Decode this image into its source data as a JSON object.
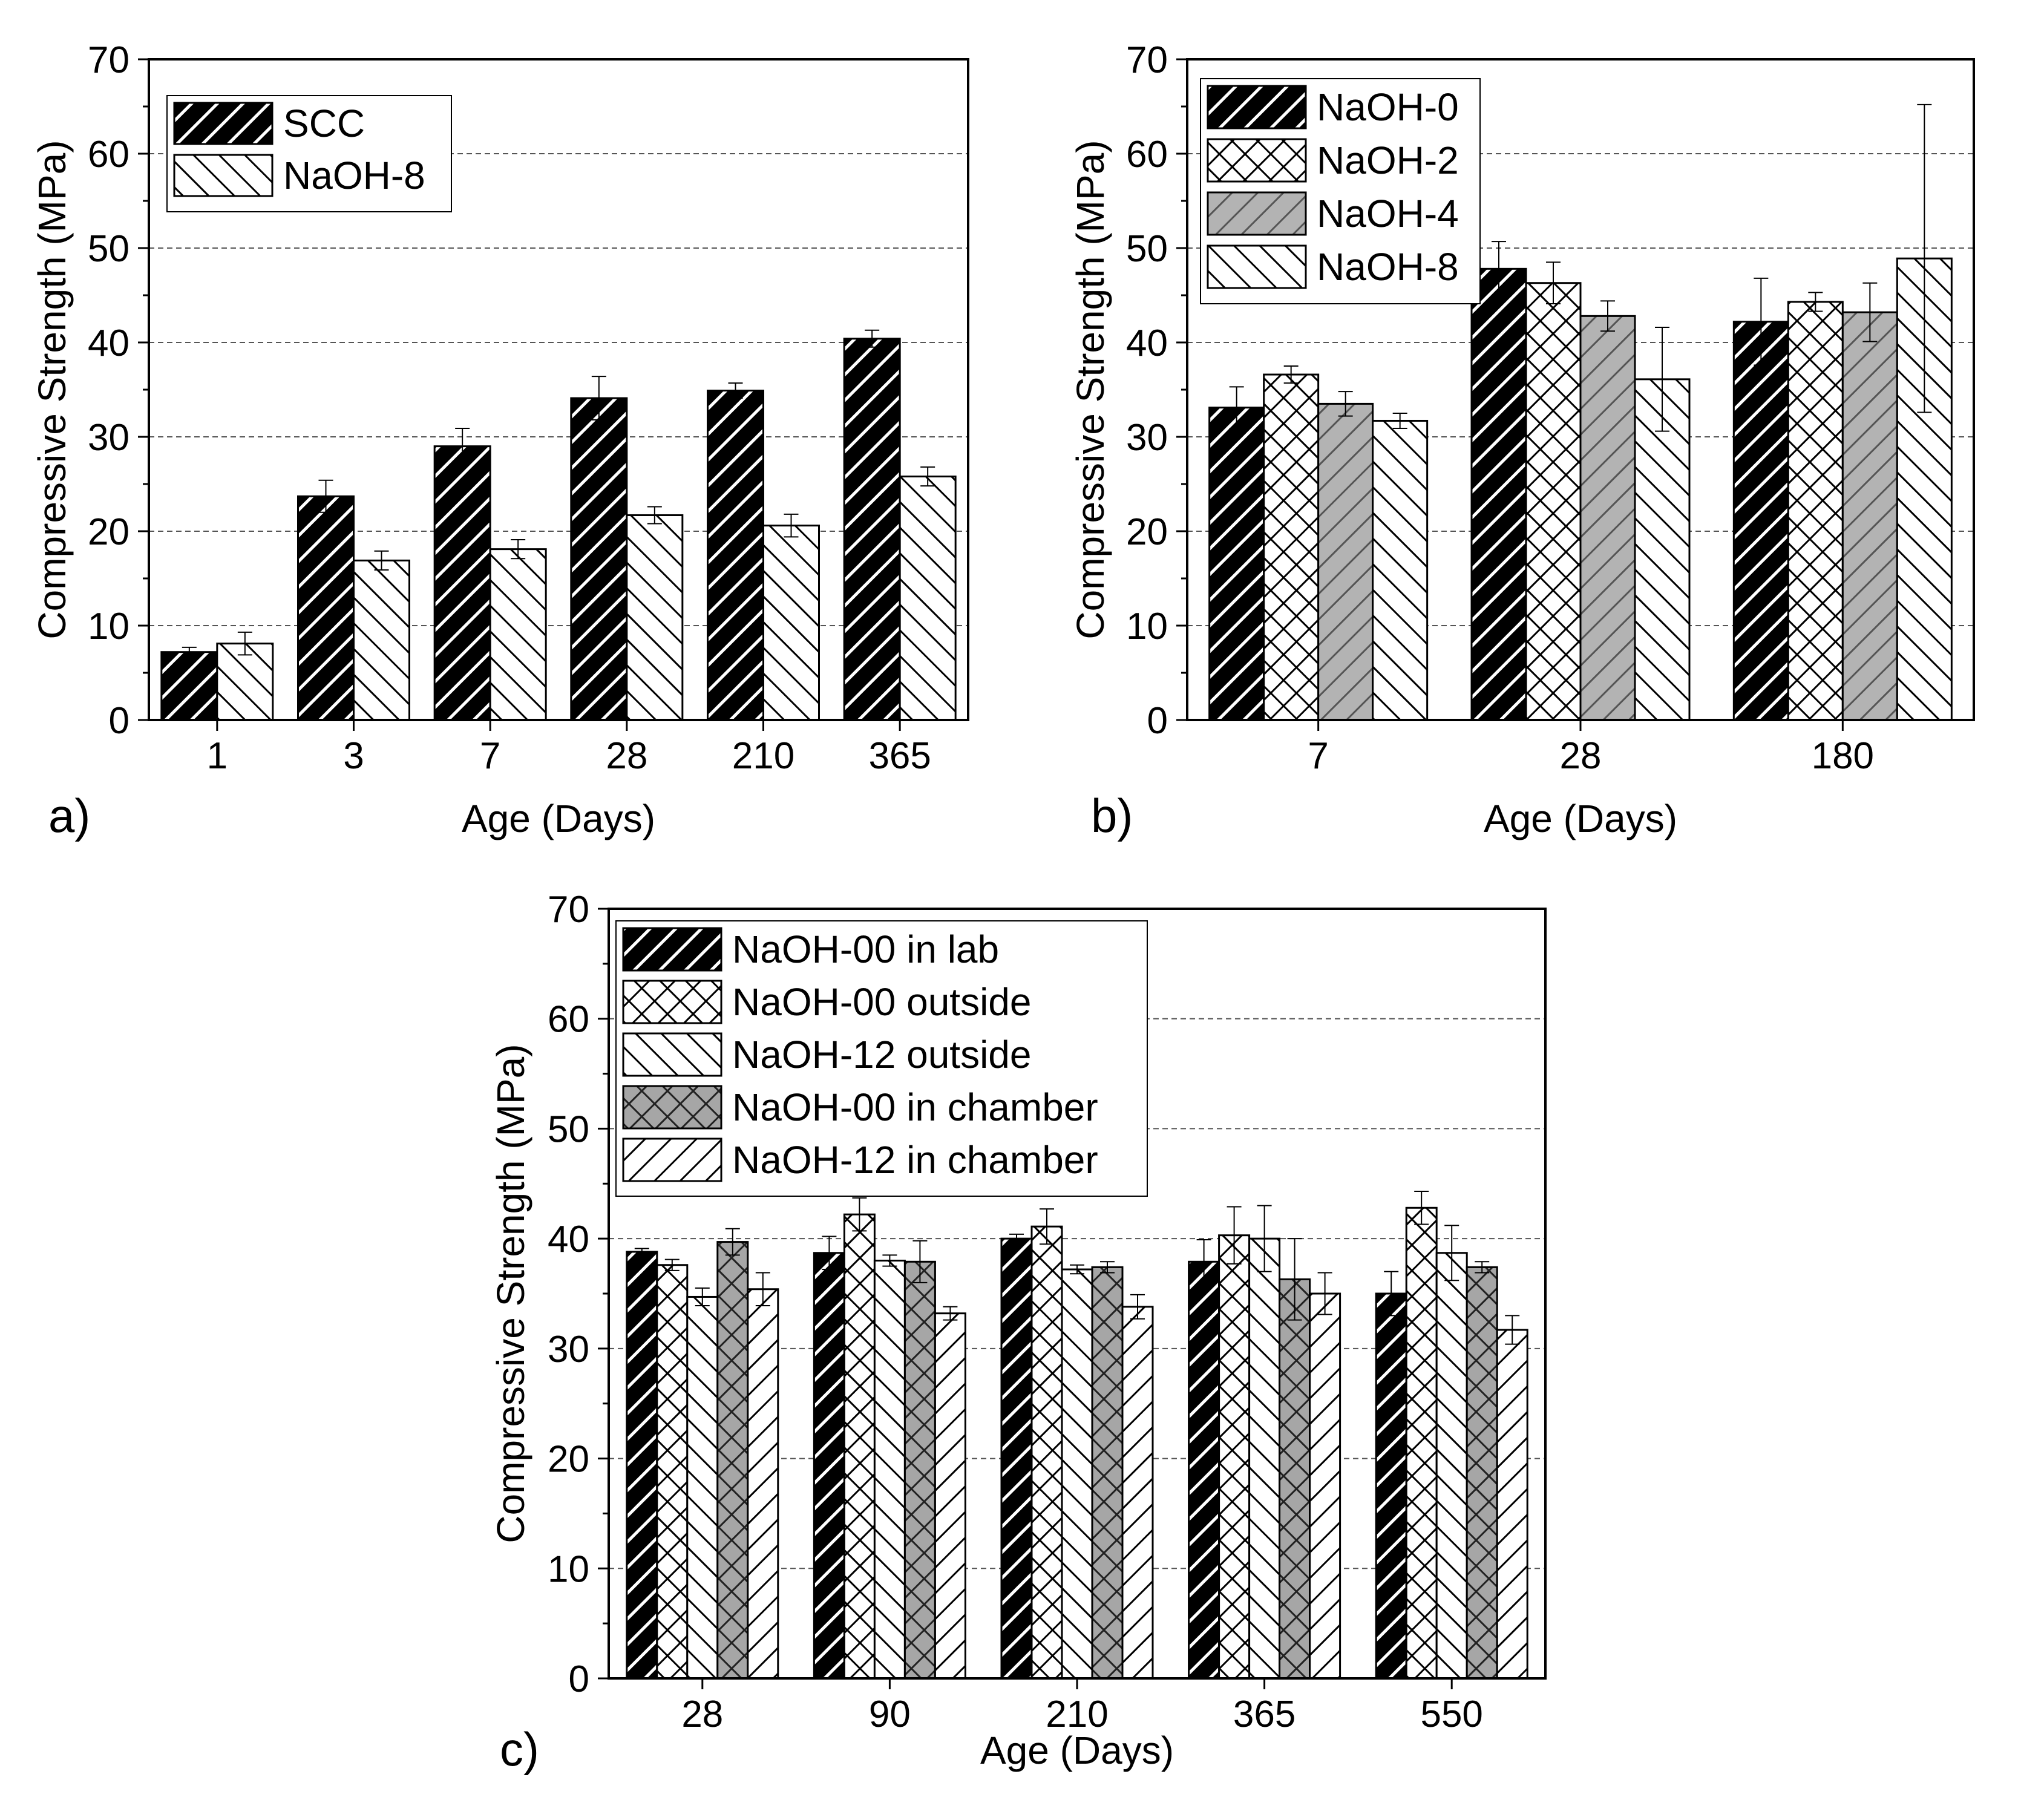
{
  "chart_data": [
    {
      "type": "bar",
      "panel_label": "a)",
      "title": "",
      "xlabel": "Age (Days)",
      "ylabel": "Compressive Strength (MPa)",
      "ylim": [
        0,
        70
      ],
      "yticks": [
        "0",
        "10",
        "20",
        "30",
        "40",
        "50",
        "60",
        "70"
      ],
      "grid": "horizontal dashed",
      "legend_position": "top-left",
      "categories": [
        "1",
        "3",
        "7",
        "28",
        "210",
        "365"
      ],
      "series": [
        {
          "name": "SCC",
          "pattern": "dark-diagonal-up",
          "values": [
            7.2,
            23.7,
            29.0,
            34.1,
            34.9,
            40.4
          ],
          "errors": [
            0.5,
            1.7,
            1.9,
            2.3,
            0.8,
            0.9
          ]
        },
        {
          "name": "NaOH-8",
          "pattern": "white-diagonal-down",
          "values": [
            8.1,
            16.9,
            18.1,
            21.7,
            20.6,
            25.8
          ],
          "errors": [
            1.2,
            1.0,
            1.0,
            0.9,
            1.2,
            1.0
          ]
        }
      ]
    },
    {
      "type": "bar",
      "panel_label": "b)",
      "title": "",
      "xlabel": "Age (Days)",
      "ylabel": "Compressive Strength (MPa)",
      "ylim": [
        0,
        70
      ],
      "yticks": [
        "0",
        "10",
        "20",
        "30",
        "40",
        "50",
        "60",
        "70"
      ],
      "grid": "horizontal dashed",
      "legend_position": "top-left",
      "categories": [
        "7",
        "28",
        "180"
      ],
      "series": [
        {
          "name": "NaOH-0",
          "pattern": "dark-diagonal-up",
          "values": [
            33.1,
            47.8,
            42.2
          ],
          "errors": [
            2.2,
            2.9,
            4.6
          ]
        },
        {
          "name": "NaOH-2",
          "pattern": "white-crosshatch",
          "values": [
            36.6,
            46.3,
            44.3
          ],
          "errors": [
            0.9,
            2.2,
            1.0
          ]
        },
        {
          "name": "NaOH-4",
          "pattern": "gray-diagonal-up",
          "values": [
            33.5,
            42.8,
            43.2
          ],
          "errors": [
            1.3,
            1.6,
            3.1
          ]
        },
        {
          "name": "NaOH-8",
          "pattern": "white-diagonal-down",
          "values": [
            31.7,
            36.1,
            48.9
          ],
          "errors": [
            0.8,
            5.5,
            16.3
          ]
        }
      ]
    },
    {
      "type": "bar",
      "panel_label": "c)",
      "title": "",
      "xlabel": "Age (Days)",
      "ylabel": "Compressive Strength (MPa)",
      "ylim": [
        0,
        70
      ],
      "yticks": [
        "0",
        "10",
        "20",
        "30",
        "40",
        "50",
        "60",
        "70"
      ],
      "grid": "horizontal dashed",
      "legend_position": "top-left",
      "categories": [
        "28",
        "90",
        "210",
        "365",
        "550"
      ],
      "series": [
        {
          "name": "NaOH-00 in lab",
          "pattern": "dark-diagonal-up",
          "values": [
            38.8,
            38.7,
            40.0,
            37.9,
            35.0
          ],
          "errors": [
            0.3,
            1.5,
            0.4,
            2.0,
            2.0
          ]
        },
        {
          "name": "NaOH-00 outside",
          "pattern": "white-crosshatch",
          "values": [
            37.6,
            42.2,
            41.1,
            40.3,
            42.8
          ],
          "errors": [
            0.5,
            1.5,
            1.6,
            2.6,
            1.5
          ]
        },
        {
          "name": "NaOH-12 outside",
          "pattern": "white-diagonal-down",
          "values": [
            34.7,
            38.0,
            37.2,
            40.0,
            38.7
          ],
          "errors": [
            0.8,
            0.5,
            0.4,
            3.0,
            2.5
          ]
        },
        {
          "name": "NaOH-00 in chamber",
          "pattern": "gray-crosshatch",
          "values": [
            39.7,
            37.9,
            37.4,
            36.3,
            37.4
          ],
          "errors": [
            1.2,
            1.9,
            0.5,
            3.7,
            0.5
          ]
        },
        {
          "name": "NaOH-12 in chamber",
          "pattern": "white-diagonal-up",
          "values": [
            35.4,
            33.2,
            33.8,
            35.0,
            31.7
          ],
          "errors": [
            1.5,
            0.6,
            1.1,
            1.9,
            1.3
          ]
        }
      ]
    }
  ]
}
